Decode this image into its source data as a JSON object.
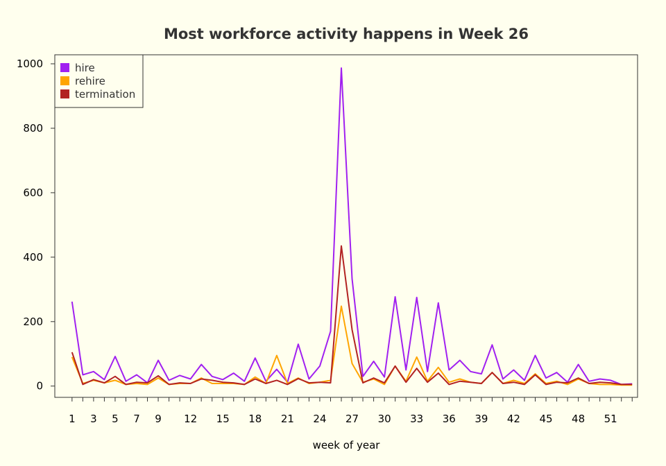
{
  "chart_data": {
    "type": "line",
    "title": "Most workforce activity happens in Week 26",
    "xlabel": "week of year",
    "ylabel": "",
    "x": [
      1,
      2,
      3,
      4,
      5,
      6,
      7,
      8,
      9,
      10,
      11,
      12,
      13,
      14,
      15,
      16,
      17,
      18,
      19,
      20,
      21,
      22,
      23,
      24,
      25,
      26,
      27,
      28,
      29,
      30,
      31,
      32,
      33,
      34,
      35,
      36,
      37,
      38,
      39,
      40,
      41,
      42,
      43,
      44,
      45,
      46,
      47,
      48,
      49,
      50,
      51,
      52,
      53
    ],
    "xticks": [
      1,
      3,
      5,
      7,
      9,
      12,
      15,
      18,
      21,
      24,
      27,
      30,
      33,
      36,
      39,
      42,
      45,
      48,
      51
    ],
    "xlim": [
      -0.6,
      53.5
    ],
    "ylim": [
      -35,
      1028
    ],
    "yticks": [
      0,
      200,
      400,
      600,
      800,
      1000
    ],
    "grid": false,
    "legend_position": "top-left",
    "background_color": "#ffffee",
    "series": [
      {
        "name": "hire",
        "color": "#a020f0",
        "values": [
          262,
          35,
          45,
          20,
          92,
          15,
          35,
          10,
          80,
          18,
          33,
          22,
          67,
          30,
          20,
          40,
          15,
          87,
          15,
          52,
          12,
          130,
          22,
          62,
          170,
          987,
          333,
          30,
          77,
          28,
          277,
          50,
          275,
          45,
          258,
          50,
          80,
          45,
          38,
          128,
          22,
          50,
          18,
          95,
          25,
          42,
          12,
          67,
          15,
          22,
          18,
          5,
          7
        ]
      },
      {
        "name": "rehire",
        "color": "#ffa500",
        "values": [
          90,
          8,
          18,
          10,
          18,
          5,
          8,
          5,
          25,
          5,
          8,
          8,
          25,
          8,
          8,
          8,
          5,
          28,
          8,
          95,
          8,
          25,
          8,
          12,
          18,
          248,
          70,
          12,
          22,
          5,
          62,
          15,
          90,
          15,
          58,
          12,
          22,
          12,
          8,
          42,
          8,
          18,
          8,
          38,
          8,
          15,
          5,
          22,
          8,
          5,
          5,
          3,
          3
        ]
      },
      {
        "name": "termination",
        "color": "#b22222",
        "values": [
          105,
          5,
          20,
          10,
          30,
          5,
          12,
          10,
          32,
          5,
          10,
          8,
          22,
          18,
          12,
          10,
          5,
          22,
          8,
          18,
          5,
          23,
          10,
          12,
          10,
          435,
          175,
          10,
          25,
          10,
          62,
          12,
          55,
          12,
          40,
          5,
          15,
          12,
          8,
          42,
          8,
          12,
          5,
          35,
          5,
          12,
          10,
          25,
          8,
          12,
          10,
          5,
          5
        ]
      }
    ]
  }
}
